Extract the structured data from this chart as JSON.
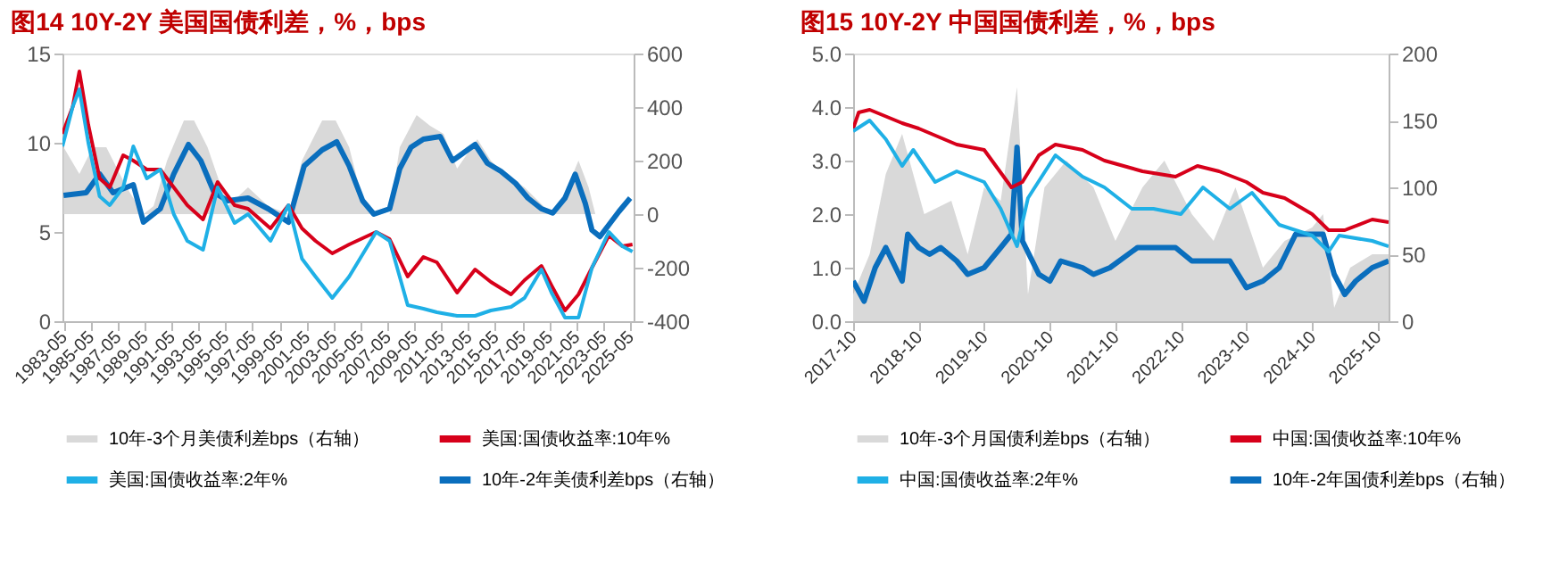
{
  "chart_data": [
    {
      "type": "line",
      "title": "图14  10Y-2Y 美国国债利差，%，bps",
      "xlim": [
        "1983-04",
        "2025-08"
      ],
      "xticks": [
        "1983-05",
        "1985-05",
        "1987-05",
        "1989-05",
        "1991-05",
        "1993-05",
        "1995-05",
        "1997-05",
        "1999-05",
        "2001-05",
        "2003-05",
        "2005-05",
        "2007-05",
        "2009-05",
        "2011-05",
        "2013-05",
        "2015-05",
        "2017-05",
        "2019-05",
        "2021-05",
        "2023-05",
        "2025-05"
      ],
      "ylim": [
        0,
        15
      ],
      "yticks": [
        0,
        5,
        10,
        15
      ],
      "y2lim": [
        -400,
        600
      ],
      "y2ticks": [
        -400,
        -200,
        0,
        200,
        400,
        600
      ],
      "grid": false,
      "legend": "bottom",
      "series": [
        {
          "name": "10年-3个月美债利差bps（右轴）",
          "type": "area",
          "axis": "y2",
          "color": "#d9d9d9",
          "x": [
            "1983-05",
            "1984-07",
            "1985-07",
            "1986-07",
            "1988-01",
            "1989-04",
            "1990-01",
            "1991-01",
            "1992-04",
            "1993-01",
            "1994-01",
            "1995-07",
            "1997-01",
            "1998-07",
            "2000-01",
            "2001-01",
            "2002-07",
            "2003-07",
            "2004-07",
            "2005-07",
            "2006-07",
            "2007-07",
            "2008-04",
            "2009-07",
            "2010-07",
            "2011-07",
            "2012-07",
            "2014-01",
            "2015-01",
            "2016-01",
            "2017-07",
            "2018-07",
            "2019-07",
            "2020-07",
            "2021-07",
            "2022-04",
            "2022-10",
            "2024-07",
            "2025-05"
          ],
          "values": [
            250,
            150,
            250,
            250,
            100,
            0,
            30,
            200,
            350,
            350,
            250,
            30,
            100,
            30,
            0,
            200,
            350,
            350,
            250,
            50,
            0,
            0,
            250,
            370,
            330,
            300,
            170,
            280,
            200,
            150,
            100,
            50,
            0,
            80,
            200,
            100,
            0,
            0,
            0
          ]
        },
        {
          "name": "美国:国债收益率:10年%",
          "type": "line",
          "color": "#d7001a",
          "x": [
            "1983-04",
            "1984-01",
            "1984-07",
            "1985-03",
            "1986-01",
            "1986-10",
            "1987-10",
            "1988-07",
            "1989-07",
            "1990-07",
            "1991-07",
            "1992-07",
            "1993-09",
            "1994-10",
            "1996-01",
            "1997-01",
            "1998-09",
            "2000-01",
            "2001-01",
            "2002-01",
            "2003-04",
            "2004-07",
            "2006-07",
            "2007-07",
            "2008-11",
            "2010-01",
            "2011-01",
            "2012-07",
            "2013-11",
            "2015-01",
            "2016-07",
            "2017-07",
            "2018-10",
            "2019-07",
            "2020-07",
            "2021-07",
            "2022-07",
            "2023-10",
            "2024-10",
            "2025-07"
          ],
          "values": [
            10.5,
            12,
            14,
            11,
            8,
            7.5,
            9.3,
            9,
            8.5,
            8.5,
            7.5,
            6.5,
            5.7,
            7.8,
            6.5,
            6.3,
            5.2,
            6.5,
            5.2,
            4.5,
            3.8,
            4.3,
            5.0,
            4.6,
            2.5,
            3.6,
            3.3,
            1.6,
            2.9,
            2.2,
            1.5,
            2.3,
            3.1,
            2.0,
            0.6,
            1.5,
            3.0,
            4.8,
            4.2,
            4.3
          ]
        },
        {
          "name": "美国:国债收益率:2年%",
          "type": "line",
          "color": "#1fb0e6",
          "x": [
            "1983-04",
            "1984-01",
            "1984-07",
            "1985-03",
            "1986-01",
            "1986-10",
            "1987-10",
            "1988-07",
            "1989-07",
            "1990-07",
            "1991-07",
            "1992-07",
            "1993-09",
            "1994-10",
            "1996-01",
            "1997-01",
            "1998-09",
            "2000-01",
            "2001-01",
            "2002-01",
            "2003-04",
            "2004-07",
            "2006-07",
            "2007-07",
            "2008-11",
            "2010-01",
            "2011-01",
            "2012-07",
            "2013-11",
            "2015-01",
            "2016-07",
            "2017-07",
            "2018-10",
            "2019-07",
            "2020-07",
            "2021-07",
            "2022-07",
            "2023-10",
            "2024-10",
            "2025-07"
          ],
          "values": [
            9.8,
            12,
            13,
            10,
            7,
            6.5,
            7.5,
            9.8,
            8,
            8.5,
            6,
            4.5,
            4,
            7.5,
            5.5,
            6,
            4.5,
            6.5,
            3.5,
            2.5,
            1.3,
            2.5,
            5,
            4.5,
            0.9,
            0.7,
            0.5,
            0.3,
            0.3,
            0.6,
            0.8,
            1.3,
            2.9,
            1.6,
            0.2,
            0.2,
            3.0,
            5.0,
            4.2,
            3.9
          ]
        },
        {
          "name": "10年-2年美债利差bps（右轴）",
          "type": "line",
          "axis": "y2",
          "color": "#0a6ebd",
          "x": [
            "1983-05",
            "1985-01",
            "1986-01",
            "1987-01",
            "1988-07",
            "1989-04",
            "1990-07",
            "1991-07",
            "1992-08",
            "1993-07",
            "1994-07",
            "1995-07",
            "1997-01",
            "1998-07",
            "2000-01",
            "2001-03",
            "2002-07",
            "2003-08",
            "2004-07",
            "2005-07",
            "2006-05",
            "2007-07",
            "2008-04",
            "2009-02",
            "2010-01",
            "2011-04",
            "2012-03",
            "2013-11",
            "2014-10",
            "2015-10",
            "2016-11",
            "2017-10",
            "2018-10",
            "2019-08",
            "2020-07",
            "2021-04",
            "2022-01",
            "2022-07",
            "2023-02",
            "2023-10",
            "2024-07",
            "2025-05"
          ],
          "values": [
            70,
            80,
            150,
            80,
            110,
            -30,
            20,
            150,
            260,
            200,
            80,
            50,
            60,
            20,
            -30,
            180,
            240,
            270,
            180,
            50,
            0,
            20,
            170,
            250,
            280,
            290,
            200,
            260,
            190,
            160,
            115,
            60,
            20,
            4,
            60,
            149,
            40,
            -60,
            -84,
            -40,
            10,
            60
          ]
        }
      ]
    },
    {
      "type": "line",
      "title": "图15  10Y-2Y 中国国债利差，%，bps",
      "xlim": [
        "2017-10",
        "2025-12"
      ],
      "xticks": [
        "2017-10",
        "2018-10",
        "2019-10",
        "2020-10",
        "2021-10",
        "2022-10",
        "2023-10",
        "2024-10",
        "2025-10"
      ],
      "ylim": [
        0,
        5
      ],
      "yticks": [
        {
          "value": 0,
          "label": "0.0"
        },
        {
          "value": 1,
          "label": "1.0"
        },
        {
          "value": 2,
          "label": "2.0"
        },
        {
          "value": 3,
          "label": "3.0"
        },
        {
          "value": 4,
          "label": "4.0"
        },
        {
          "value": 5,
          "label": "5.0"
        }
      ],
      "y2lim": [
        0,
        200
      ],
      "y2ticks": [
        0,
        50,
        100,
        150,
        200
      ],
      "grid": false,
      "legend": "bottom",
      "series": [
        {
          "name": "10年-3个月国债利差bps（右轴）",
          "type": "area",
          "axis": "y2",
          "color": "#d9d9d9",
          "x": [
            "2017-10",
            "2018-01",
            "2018-04",
            "2018-07",
            "2018-11",
            "2019-04",
            "2019-07",
            "2019-10",
            "2020-01",
            "2020-04",
            "2020-06",
            "2020-09",
            "2021-01",
            "2021-06",
            "2021-10",
            "2022-03",
            "2022-07",
            "2022-12",
            "2023-04",
            "2023-08",
            "2024-01",
            "2024-05",
            "2024-10",
            "2024-12",
            "2025-02",
            "2025-05",
            "2025-09",
            "2025-12"
          ],
          "values": [
            20,
            50,
            110,
            140,
            80,
            90,
            50,
            100,
            90,
            175,
            20,
            100,
            120,
            100,
            60,
            100,
            120,
            80,
            60,
            100,
            40,
            60,
            70,
            80,
            10,
            40,
            50,
            50
          ]
        },
        {
          "name": "中国:国债收益率:10年%",
          "type": "line",
          "color": "#d7001a",
          "x": [
            "2017-10",
            "2017-11",
            "2018-01",
            "2018-07",
            "2018-10",
            "2019-05",
            "2019-10",
            "2020-03",
            "2020-05",
            "2020-08",
            "2020-11",
            "2021-04",
            "2021-08",
            "2022-03",
            "2022-09",
            "2023-01",
            "2023-05",
            "2023-10",
            "2024-01",
            "2024-05",
            "2024-10",
            "2025-01",
            "2025-04",
            "2025-09",
            "2025-12"
          ],
          "values": [
            3.6,
            3.9,
            3.95,
            3.7,
            3.6,
            3.3,
            3.2,
            2.5,
            2.6,
            3.1,
            3.3,
            3.2,
            3.0,
            2.8,
            2.7,
            2.9,
            2.8,
            2.6,
            2.4,
            2.3,
            2.0,
            1.7,
            1.7,
            1.9,
            1.85
          ]
        },
        {
          "name": "中国:国债收益率:2年%",
          "type": "line",
          "color": "#1fb0e6",
          "x": [
            "2017-10",
            "2018-01",
            "2018-04",
            "2018-07",
            "2018-09",
            "2019-01",
            "2019-05",
            "2019-10",
            "2020-01",
            "2020-04",
            "2020-06",
            "2020-11",
            "2021-04",
            "2021-08",
            "2022-01",
            "2022-05",
            "2022-10",
            "2023-02",
            "2023-07",
            "2023-11",
            "2024-04",
            "2024-10",
            "2025-01",
            "2025-03",
            "2025-09",
            "2025-12"
          ],
          "values": [
            3.55,
            3.75,
            3.4,
            2.9,
            3.2,
            2.6,
            2.8,
            2.6,
            2.1,
            1.4,
            2.3,
            3.1,
            2.7,
            2.5,
            2.1,
            2.1,
            2.0,
            2.5,
            2.1,
            2.4,
            1.8,
            1.6,
            1.3,
            1.6,
            1.5,
            1.4
          ]
        },
        {
          "name": "10年-2年国债利差bps（右轴）",
          "type": "line",
          "axis": "y2",
          "color": "#0a6ebd",
          "x": [
            "2017-10",
            "2017-12",
            "2018-02",
            "2018-04",
            "2018-07",
            "2018-08",
            "2018-10",
            "2018-12",
            "2019-02",
            "2019-05",
            "2019-07",
            "2019-10",
            "2020-01",
            "2020-03",
            "2020-04",
            "2020-05",
            "2020-08",
            "2020-10",
            "2020-12",
            "2021-04",
            "2021-06",
            "2021-09",
            "2022-02",
            "2022-05",
            "2022-09",
            "2022-12",
            "2023-04",
            "2023-07",
            "2023-10",
            "2024-01",
            "2024-04",
            "2024-07",
            "2024-10",
            "2024-12",
            "2025-02",
            "2025-04",
            "2025-06",
            "2025-09",
            "2025-12"
          ],
          "values": [
            30,
            15,
            40,
            55,
            30,
            65,
            55,
            50,
            55,
            45,
            35,
            40,
            55,
            65,
            130,
            60,
            35,
            30,
            45,
            40,
            35,
            40,
            55,
            55,
            55,
            45,
            45,
            45,
            25,
            30,
            40,
            65,
            65,
            65,
            35,
            20,
            30,
            40,
            45
          ]
        }
      ]
    }
  ]
}
